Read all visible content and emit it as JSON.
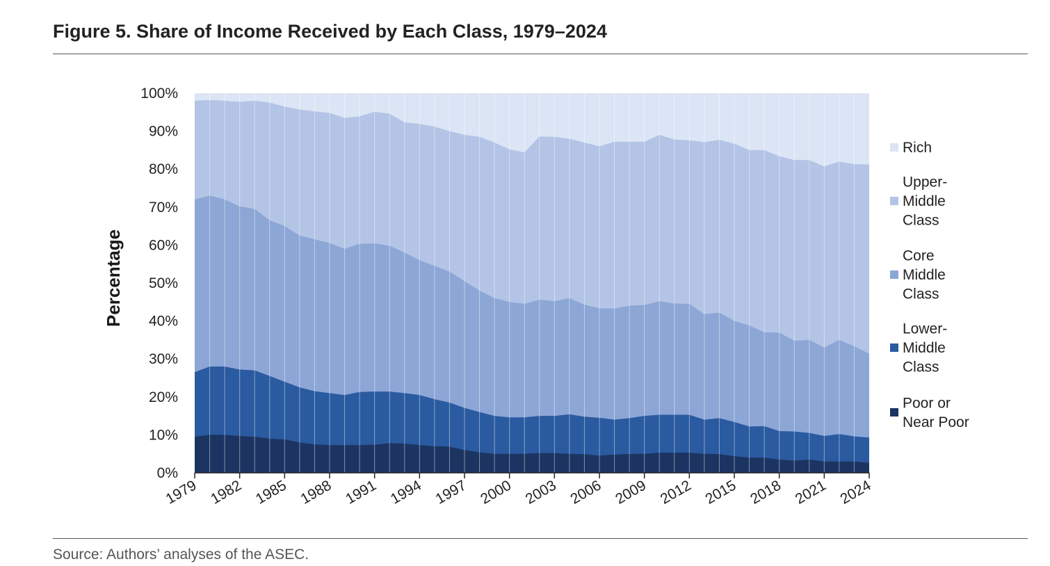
{
  "figure": {
    "title": "Figure 5. Share of Income Received by Each Class, 1979–2024",
    "source": "Source: Authors’ analyses of the ASEC."
  },
  "chart_data": {
    "type": "area",
    "stacked": true,
    "title": "Figure 5. Share of Income Received by Each Class, 1979–2024",
    "xlabel": "",
    "ylabel": "Percentage",
    "ylim": [
      0,
      100
    ],
    "yticks": [
      "0%",
      "10%",
      "20%",
      "30%",
      "40%",
      "50%",
      "60%",
      "70%",
      "80%",
      "90%",
      "100%"
    ],
    "xticks": [
      "1979",
      "1982",
      "1985",
      "1988",
      "1991",
      "1994",
      "1997",
      "2000",
      "2003",
      "2006",
      "2009",
      "2012",
      "2015",
      "2018",
      "2021",
      "2024"
    ],
    "grid": false,
    "legend_position": "right",
    "x": [
      1979,
      1980,
      1981,
      1982,
      1983,
      1984,
      1985,
      1986,
      1987,
      1988,
      1989,
      1990,
      1991,
      1992,
      1993,
      1994,
      1995,
      1996,
      1997,
      1998,
      1999,
      2000,
      2001,
      2002,
      2003,
      2004,
      2005,
      2006,
      2007,
      2008,
      2009,
      2010,
      2011,
      2012,
      2013,
      2014,
      2015,
      2016,
      2017,
      2018,
      2019,
      2020,
      2021,
      2022,
      2023,
      2024
    ],
    "series": [
      {
        "name": "Poor or Near Poor",
        "legend_label": "Poor or Near Poor",
        "color": "#1c3461",
        "values": [
          9.5,
          10,
          10,
          9.7,
          9.5,
          9,
          8.8,
          8,
          7.5,
          7.3,
          7.3,
          7.3,
          7.4,
          7.8,
          7.7,
          7.3,
          7,
          6.9,
          6,
          5.4,
          5,
          5,
          5,
          5.2,
          5.2,
          5,
          4.9,
          4.5,
          4.8,
          5,
          5,
          5.3,
          5.3,
          5.3,
          5,
          4.9,
          4.4,
          4,
          4,
          3.5,
          3.2,
          3.5,
          3,
          3,
          3,
          2.6
        ],
        "cumulative": [
          9.5,
          10,
          10,
          9.7,
          9.5,
          9,
          8.8,
          8,
          7.5,
          7.3,
          7.3,
          7.3,
          7.4,
          7.8,
          7.7,
          7.3,
          7,
          6.9,
          6,
          5.4,
          5,
          5,
          5,
          5.2,
          5.2,
          5,
          4.9,
          4.5,
          4.8,
          5,
          5,
          5.3,
          5.3,
          5.3,
          5,
          4.9,
          4.4,
          4,
          4,
          3.5,
          3.2,
          3.5,
          3,
          3,
          3,
          2.6
        ]
      },
      {
        "name": "Lower-Middle Class",
        "legend_label": "Lower- Middle Class",
        "color": "#2a5aa0",
        "values": [
          17,
          18,
          18,
          17.5,
          17.5,
          16.5,
          15.2,
          14.5,
          14,
          13.7,
          13.2,
          14,
          14,
          13.6,
          13.3,
          13.2,
          12.4,
          11.6,
          11.1,
          10.6,
          10,
          9.6,
          9.6,
          9.8,
          9.8,
          10.4,
          9.9,
          10,
          9.2,
          9.4,
          10,
          10,
          10,
          10,
          9,
          9.5,
          9,
          8.2,
          8.3,
          7.5,
          7.7,
          7,
          6.7,
          7.2,
          6.6,
          6.7
        ],
        "cumulative": [
          26.5,
          28,
          28,
          27.2,
          27,
          25.5,
          24,
          22.5,
          21.5,
          21,
          20.5,
          21.3,
          21.4,
          21.4,
          21,
          20.5,
          19.4,
          18.5,
          17.1,
          16,
          15,
          14.6,
          14.6,
          15,
          15,
          15.4,
          14.8,
          14.5,
          14,
          14.4,
          15,
          15.3,
          15.3,
          15.3,
          14,
          14.4,
          13.4,
          12.2,
          12.3,
          11,
          10.9,
          10.5,
          9.7,
          10.2,
          9.6,
          9.3
        ]
      },
      {
        "name": "Core Middle Class",
        "legend_label": "Core Middle Class",
        "color": "#8ca6d6",
        "values": [
          45.5,
          45,
          44,
          43,
          42.5,
          41,
          41,
          40,
          40,
          39.5,
          38.5,
          39,
          39,
          38.4,
          37,
          35.5,
          35.1,
          34.5,
          33.4,
          32,
          31,
          30.4,
          29.9,
          30.6,
          30.2,
          30.6,
          29.5,
          28.8,
          29.3,
          29.6,
          29.2,
          29.9,
          29.3,
          29.2,
          27.8,
          27.8,
          26.6,
          26.6,
          24.7,
          25.9,
          23.9,
          24.5,
          23.3,
          24.8,
          23.7,
          22.1
        ],
        "cumulative": [
          72,
          73,
          72,
          70.2,
          69.5,
          66.5,
          65,
          62.5,
          61.5,
          60.5,
          59,
          60.3,
          60.4,
          59.8,
          58,
          56,
          54.5,
          53,
          50.5,
          48,
          46,
          45,
          44.5,
          45.6,
          45.2,
          46,
          44.3,
          43.3,
          43.3,
          44,
          44.2,
          45.2,
          44.6,
          44.5,
          41.8,
          42.2,
          40,
          38.8,
          37,
          36.9,
          34.8,
          35,
          33,
          35,
          33.3,
          31.4
        ]
      },
      {
        "name": "Upper-Middle Class",
        "legend_label": "Upper- Middle Class",
        "color": "#b3c4e6",
        "values": [
          26,
          25.2,
          26,
          27.5,
          28.5,
          31,
          31.5,
          33.2,
          33.7,
          34.3,
          34.5,
          33.6,
          34.7,
          34.8,
          34.3,
          35.9,
          36.7,
          37,
          38.5,
          40.5,
          41,
          40.2,
          39.9,
          43,
          43.3,
          42,
          42.7,
          42.7,
          43.9,
          43.2,
          43,
          43.8,
          43.2,
          43.1,
          45.3,
          45.5,
          46.7,
          46.2,
          48,
          46.5,
          47.6,
          47.4,
          47.7,
          47,
          48,
          49.8
        ],
        "cumulative": [
          98,
          98.2,
          98,
          97.7,
          98,
          97.5,
          96.5,
          95.7,
          95.2,
          94.8,
          93.5,
          93.9,
          95.1,
          94.6,
          92.3,
          91.9,
          91.2,
          90,
          89,
          88.5,
          87,
          85.2,
          84.4,
          88.6,
          88.5,
          88,
          87,
          86,
          87.2,
          87.2,
          87.2,
          89,
          87.8,
          87.6,
          87.1,
          87.7,
          86.7,
          85,
          85,
          83.4,
          82.4,
          82.4,
          80.7,
          82,
          81.3,
          81.2
        ]
      },
      {
        "name": "Rich",
        "legend_label": "Rich",
        "color": "#dce5f5",
        "values": [
          2,
          1.8,
          2,
          2.3,
          2,
          2.5,
          3.5,
          4.3,
          4.8,
          5.2,
          6.5,
          6.1,
          4.9,
          5.4,
          7.7,
          8.1,
          8.8,
          10,
          11,
          11.5,
          13,
          14.8,
          15.6,
          11.4,
          11.5,
          12,
          13,
          14,
          12.8,
          12.8,
          12.8,
          11,
          12.2,
          12.4,
          12.9,
          12.3,
          13.3,
          15,
          15,
          16.6,
          17.6,
          17.6,
          19.3,
          18,
          18.7,
          18.8
        ],
        "cumulative": [
          100,
          100,
          100,
          100,
          100,
          100,
          100,
          100,
          100,
          100,
          100,
          100,
          100,
          100,
          100,
          100,
          100,
          100,
          100,
          100,
          100,
          100,
          100,
          100,
          100,
          100,
          100,
          100,
          100,
          100,
          100,
          100,
          100,
          100,
          100,
          100,
          100,
          100,
          100,
          100,
          100,
          100,
          100,
          100,
          100,
          100
        ]
      }
    ]
  }
}
